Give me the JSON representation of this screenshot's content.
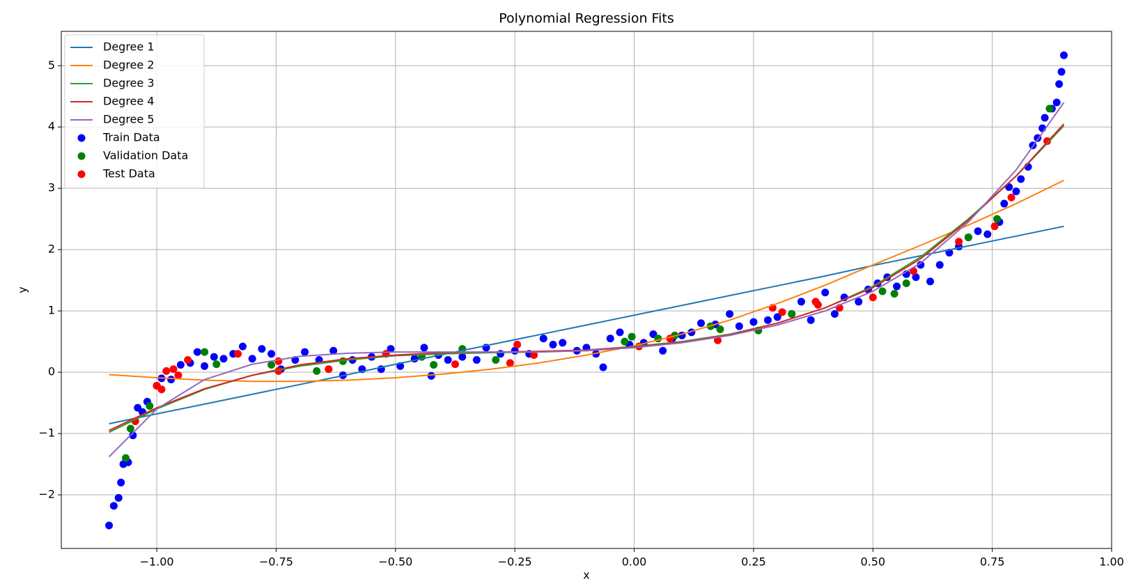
{
  "chart_data": {
    "type": "scatter",
    "title": "Polynomial Regression Fits",
    "x_label": "x",
    "y_label": "y",
    "xlim": [
      -1.2,
      1.0
    ],
    "ylim": [
      -2.875,
      5.56
    ],
    "xticks": [
      {
        "value": -1,
        "label": "−1.00"
      },
      {
        "value": -0.75,
        "label": "−0.75"
      },
      {
        "value": -0.5,
        "label": "−0.50"
      },
      {
        "value": -0.25,
        "label": "−0.25"
      },
      {
        "value": 0,
        "label": "0.00"
      },
      {
        "value": 0.25,
        "label": "0.25"
      },
      {
        "value": 0.5,
        "label": "0.50"
      },
      {
        "value": 0.75,
        "label": "0.75"
      },
      {
        "value": 1,
        "label": "1.00"
      }
    ],
    "yticks": [
      {
        "value": -2,
        "label": "−2"
      },
      {
        "value": -1,
        "label": "−1"
      },
      0,
      1,
      2,
      3,
      4,
      5
    ],
    "grid": true,
    "legend": "upper left",
    "series": [
      {
        "name": "Degree 1",
        "mode": "line",
        "color": "#1f77b4",
        "x": [
          -1.1,
          -1.0,
          -0.9,
          -0.8,
          -0.7,
          -0.6,
          -0.5,
          -0.4,
          -0.3,
          -0.2,
          -0.1,
          0,
          0.1,
          0.2,
          0.3,
          0.4,
          0.5,
          0.6,
          0.7,
          0.8,
          0.9
        ],
        "values": [
          -0.84,
          -0.68,
          -0.52,
          -0.36,
          -0.2,
          -0.04,
          0.13,
          0.29,
          0.45,
          0.61,
          0.77,
          0.93,
          1.09,
          1.25,
          1.41,
          1.57,
          1.74,
          1.9,
          2.06,
          2.22,
          2.38
        ]
      },
      {
        "name": "Degree 2",
        "mode": "line",
        "color": "#ff7f0e",
        "x": [
          -1.1,
          -1.0,
          -0.9,
          -0.8,
          -0.7,
          -0.6,
          -0.5,
          -0.4,
          -0.3,
          -0.2,
          -0.1,
          0,
          0.1,
          0.2,
          0.3,
          0.4,
          0.5,
          0.6,
          0.7,
          0.8,
          0.9
        ],
        "values": [
          -0.04,
          -0.09,
          -0.13,
          -0.15,
          -0.15,
          -0.13,
          -0.09,
          -0.03,
          0.05,
          0.15,
          0.28,
          0.43,
          0.62,
          0.85,
          1.12,
          1.42,
          1.75,
          2.07,
          2.4,
          2.75,
          3.13
        ]
      },
      {
        "name": "Degree 3",
        "mode": "line",
        "color": "#2ca02c",
        "x": [
          -1.1,
          -1.0,
          -0.9,
          -0.8,
          -0.7,
          -0.6,
          -0.5,
          -0.4,
          -0.3,
          -0.2,
          -0.1,
          0,
          0.1,
          0.2,
          0.3,
          0.4,
          0.5,
          0.6,
          0.7,
          0.8,
          0.9
        ],
        "values": [
          -0.98,
          -0.6,
          -0.28,
          -0.05,
          0.1,
          0.2,
          0.27,
          0.3,
          0.32,
          0.33,
          0.36,
          0.42,
          0.5,
          0.62,
          0.8,
          1.05,
          1.4,
          1.88,
          2.5,
          3.2,
          4.02
        ]
      },
      {
        "name": "Degree 4",
        "mode": "line",
        "color": "#d62728",
        "x": [
          -1.1,
          -1.0,
          -0.9,
          -0.8,
          -0.7,
          -0.6,
          -0.5,
          -0.4,
          -0.3,
          -0.2,
          -0.1,
          0,
          0.1,
          0.2,
          0.3,
          0.4,
          0.5,
          0.6,
          0.7,
          0.8,
          0.9
        ],
        "values": [
          -0.95,
          -0.58,
          -0.27,
          -0.05,
          0.12,
          0.22,
          0.28,
          0.32,
          0.33,
          0.34,
          0.36,
          0.41,
          0.49,
          0.61,
          0.8,
          1.05,
          1.38,
          1.85,
          2.48,
          3.2,
          4.05
        ]
      },
      {
        "name": "Degree 5",
        "mode": "line",
        "color": "#9467bd",
        "x": [
          -1.1,
          -1.0,
          -0.9,
          -0.8,
          -0.7,
          -0.6,
          -0.5,
          -0.4,
          -0.3,
          -0.2,
          -0.1,
          0,
          0.1,
          0.2,
          0.3,
          0.4,
          0.5,
          0.6,
          0.7,
          0.8,
          0.9
        ],
        "values": [
          -1.38,
          -0.6,
          -0.12,
          0.13,
          0.26,
          0.31,
          0.33,
          0.33,
          0.33,
          0.33,
          0.35,
          0.4,
          0.48,
          0.6,
          0.77,
          1.0,
          1.32,
          1.78,
          2.45,
          3.3,
          4.4
        ]
      },
      {
        "name": "Train Data",
        "mode": "marker",
        "color": "#0000ff",
        "x": [
          -1.1,
          -1.09,
          -1.08,
          -1.075,
          -1.07,
          -1.06,
          -1.05,
          -1.04,
          -1.03,
          -1.02,
          -1.0,
          -0.99,
          -0.97,
          -0.95,
          -0.93,
          -0.915,
          -0.9,
          -0.88,
          -0.86,
          -0.84,
          -0.82,
          -0.8,
          -0.78,
          -0.76,
          -0.74,
          -0.71,
          -0.69,
          -0.66,
          -0.63,
          -0.61,
          -0.59,
          -0.57,
          -0.55,
          -0.53,
          -0.51,
          -0.49,
          -0.46,
          -0.44,
          -0.425,
          -0.41,
          -0.39,
          -0.36,
          -0.33,
          -0.31,
          -0.28,
          -0.25,
          -0.22,
          -0.19,
          -0.17,
          -0.15,
          -0.12,
          -0.1,
          -0.08,
          -0.065,
          -0.05,
          -0.03,
          -0.01,
          0.02,
          0.04,
          0.06,
          0.08,
          0.1,
          0.12,
          0.14,
          0.17,
          0.2,
          0.22,
          0.25,
          0.28,
          0.3,
          0.33,
          0.35,
          0.37,
          0.4,
          0.42,
          0.44,
          0.47,
          0.49,
          0.51,
          0.53,
          0.55,
          0.57,
          0.59,
          0.6,
          0.62,
          0.64,
          0.66,
          0.68,
          0.7,
          0.72,
          0.74,
          0.765,
          0.775,
          0.785,
          0.8,
          0.81,
          0.825,
          0.835,
          0.845,
          0.855,
          0.86,
          0.875,
          0.885,
          0.89,
          0.895,
          0.9
        ],
        "values": [
          -2.5,
          -2.18,
          -2.05,
          -1.8,
          -1.5,
          -1.47,
          -1.03,
          -0.58,
          -0.65,
          -0.48,
          -0.22,
          -0.1,
          -0.12,
          0.12,
          0.15,
          0.33,
          0.1,
          0.25,
          0.22,
          0.3,
          0.42,
          0.22,
          0.38,
          0.3,
          0.05,
          0.2,
          0.33,
          0.2,
          0.35,
          -0.05,
          0.2,
          0.05,
          0.25,
          0.05,
          0.38,
          0.1,
          0.22,
          0.4,
          -0.06,
          0.28,
          0.2,
          0.25,
          0.2,
          0.4,
          0.3,
          0.35,
          0.3,
          0.55,
          0.45,
          0.48,
          0.35,
          0.4,
          0.3,
          0.08,
          0.55,
          0.65,
          0.45,
          0.48,
          0.62,
          0.35,
          0.55,
          0.6,
          0.65,
          0.8,
          0.78,
          0.95,
          0.75,
          0.82,
          0.85,
          0.9,
          0.95,
          1.15,
          0.85,
          1.3,
          0.95,
          1.22,
          1.15,
          1.35,
          1.45,
          1.55,
          1.4,
          1.6,
          1.55,
          1.75,
          1.48,
          1.75,
          1.95,
          2.05,
          2.2,
          2.3,
          2.25,
          2.45,
          2.75,
          3.02,
          2.95,
          3.15,
          3.35,
          3.7,
          3.82,
          3.98,
          4.15,
          4.3,
          4.4,
          4.7,
          4.9,
          5.17
        ]
      },
      {
        "name": "Validation Data",
        "mode": "marker",
        "color": "#008000",
        "x": [
          -1.065,
          -1.055,
          -1.015,
          -0.9,
          -0.875,
          -0.76,
          -0.665,
          -0.61,
          -0.445,
          -0.42,
          -0.36,
          -0.29,
          -0.02,
          -0.005,
          0.05,
          0.085,
          0.16,
          0.18,
          0.26,
          0.33,
          0.52,
          0.545,
          0.57,
          0.7,
          0.76,
          0.87
        ],
        "values": [
          -1.4,
          -0.92,
          -0.55,
          0.33,
          0.13,
          0.12,
          0.02,
          0.18,
          0.25,
          0.12,
          0.38,
          0.2,
          0.5,
          0.58,
          0.55,
          0.6,
          0.75,
          0.7,
          0.68,
          0.95,
          1.32,
          1.28,
          1.45,
          2.2,
          2.5,
          4.3
        ]
      },
      {
        "name": "Test Data",
        "mode": "marker",
        "color": "#ff0000",
        "x": [
          -1.045,
          -1.0,
          -0.99,
          -0.98,
          -0.965,
          -0.955,
          -0.935,
          -0.83,
          -0.745,
          -0.745,
          -0.64,
          -0.52,
          -0.375,
          -0.26,
          -0.245,
          -0.21,
          0.01,
          0.075,
          0.175,
          0.29,
          0.31,
          0.38,
          0.385,
          0.43,
          0.5,
          0.585,
          0.68,
          0.755,
          0.79,
          0.865
        ],
        "values": [
          -0.8,
          -0.22,
          -0.28,
          0.02,
          0.05,
          -0.05,
          0.2,
          0.3,
          0.02,
          0.18,
          0.05,
          0.3,
          0.13,
          0.15,
          0.45,
          0.28,
          0.42,
          0.55,
          0.52,
          1.05,
          0.98,
          1.15,
          1.1,
          1.05,
          1.22,
          1.65,
          2.13,
          2.38,
          2.85,
          3.77
        ]
      }
    ]
  }
}
